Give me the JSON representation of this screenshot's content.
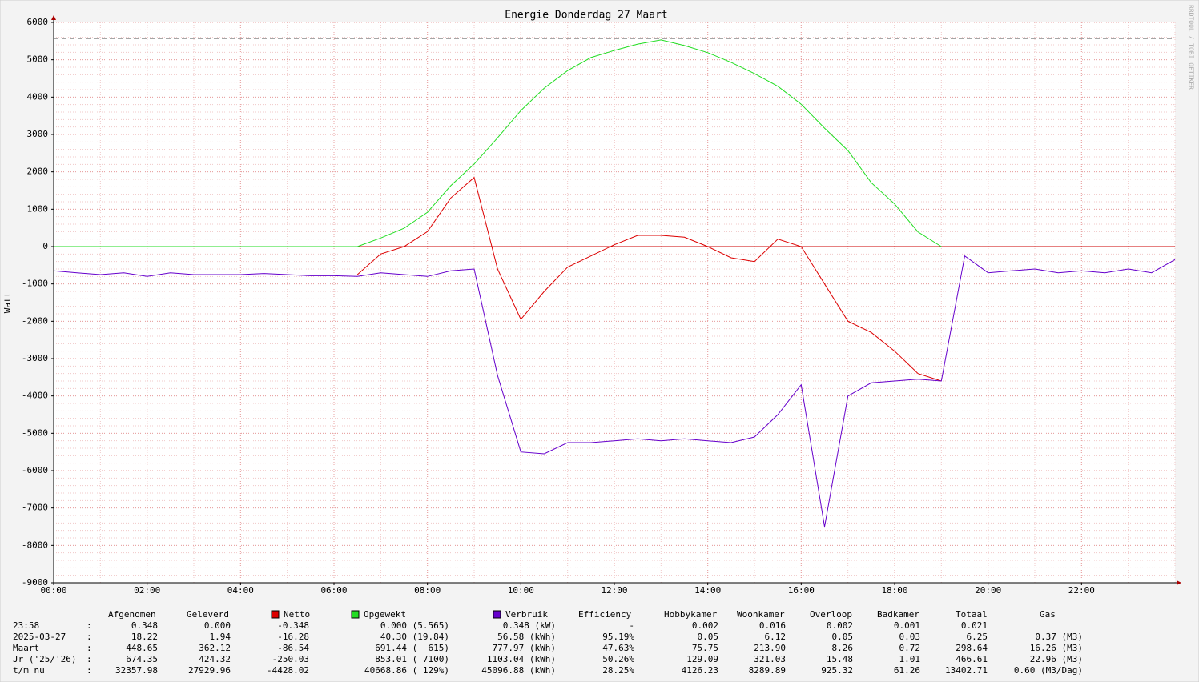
{
  "chart_data": {
    "type": "line",
    "title": "Energie Donderdag 27 Maart",
    "y_label": "Watt",
    "watermark": "RRDTOOL / TOBI OETIKER",
    "x": [
      0,
      0.5,
      1,
      1.5,
      2,
      2.5,
      3,
      3.5,
      4,
      4.5,
      5,
      5.5,
      6,
      6.5,
      7,
      7.5,
      8,
      8.5,
      9,
      9.5,
      10,
      10.5,
      11,
      11.5,
      12,
      12.5,
      13,
      13.5,
      14,
      14.5,
      15,
      15.5,
      16,
      16.5,
      17,
      17.5,
      18,
      18.5,
      19,
      19.5,
      20,
      20.5,
      21,
      21.5,
      22,
      22.5,
      23,
      23.5,
      24
    ],
    "xlim": [
      0,
      24
    ],
    "xticks": [
      {
        "value": 0,
        "label": "00:00"
      },
      {
        "value": 2,
        "label": "02:00"
      },
      {
        "value": 4,
        "label": "04:00"
      },
      {
        "value": 6,
        "label": "06:00"
      },
      {
        "value": 8,
        "label": "08:00"
      },
      {
        "value": 10,
        "label": "10:00"
      },
      {
        "value": 12,
        "label": "12:00"
      },
      {
        "value": 14,
        "label": "14:00"
      },
      {
        "value": 16,
        "label": "16:00"
      },
      {
        "value": 18,
        "label": "18:00"
      },
      {
        "value": 20,
        "label": "20:00"
      },
      {
        "value": 22,
        "label": "22:00"
      }
    ],
    "ylim": [
      -9000,
      6000
    ],
    "yticks": [
      -9000,
      -8000,
      -7000,
      -6000,
      -5000,
      -4000,
      -3000,
      -2000,
      -1000,
      0,
      1000,
      2000,
      3000,
      4000,
      5000,
      6000
    ],
    "grid": true,
    "minor_grid": {
      "x": 1,
      "y": 200
    },
    "reference_line": {
      "value": 5565,
      "color": "#888888"
    },
    "zero_line_color": "#cc0000",
    "series": [
      {
        "name": "Netto",
        "color": "#dd0000",
        "values": [
          null,
          null,
          null,
          null,
          null,
          null,
          null,
          null,
          null,
          null,
          null,
          null,
          null,
          -750,
          -200,
          0,
          400,
          1300,
          1850,
          -600,
          -1950,
          -1200,
          -550,
          -250,
          50,
          300,
          300,
          250,
          0,
          -300,
          -400,
          200,
          0,
          -1000,
          -2000,
          -2300,
          -2800,
          -3400,
          -3600,
          null,
          null,
          null,
          null,
          null,
          null,
          null,
          null,
          null,
          null
        ]
      },
      {
        "name": "Opgewekt",
        "color": "#22dd22",
        "values": [
          0,
          0,
          0,
          0,
          0,
          0,
          0,
          0,
          0,
          0,
          0,
          0,
          0,
          0,
          230,
          490,
          920,
          1630,
          2210,
          2910,
          3640,
          4240,
          4710,
          5060,
          5250,
          5420,
          5530,
          5380,
          5190,
          4930,
          4630,
          4290,
          3810,
          3170,
          2570,
          1710,
          1140,
          390,
          0,
          null,
          null,
          null,
          null,
          null,
          null,
          null,
          null,
          null,
          null
        ]
      },
      {
        "name": "Verbruik",
        "color": "#6600cc",
        "values": [
          -650,
          -700,
          -750,
          -700,
          -800,
          -700,
          -750,
          -750,
          -750,
          -720,
          -750,
          -780,
          -780,
          -800,
          -700,
          -750,
          -800,
          -650,
          -600,
          -3450,
          -5500,
          -5550,
          -5250,
          -5250,
          -5200,
          -5150,
          -5200,
          -5150,
          -5200,
          -5250,
          -5100,
          -4500,
          -3700,
          -7500,
          -4000,
          -3650,
          -3600,
          -3550,
          -3600,
          -250,
          -700,
          -650,
          -600,
          -700,
          -650,
          -700,
          -600,
          -700,
          -350
        ]
      }
    ]
  },
  "table": {
    "headers": [
      "Afgenomen",
      "Geleverd",
      "Efficiency",
      "Hobbykamer",
      "Woonkamer",
      "Overloop",
      "Badkamer",
      "Totaal",
      "Gas"
    ],
    "rows": [
      {
        "label": "23:58",
        "sep": ":",
        "cells": [
          "0.348",
          "0.000",
          "-0.348",
          "0.000 (5.565)",
          "0.348 (kW)",
          "-",
          "0.002",
          "0.016",
          "0.002",
          "0.001",
          "0.021"
        ]
      },
      {
        "label": "2025-03-27",
        "sep": ":",
        "cells": [
          "18.22",
          "1.94",
          "-16.28",
          "40.30 (19.84)",
          "56.58 (kWh)",
          "95.19%",
          "0.05",
          "6.12",
          "0.05",
          "0.03",
          "6.25",
          "0.37 (M3)"
        ]
      },
      {
        "label": "Maart",
        "sep": ":",
        "cells": [
          "448.65",
          "362.12",
          "-86.54",
          "691.44 (  615)",
          "777.97 (kWh)",
          "47.63%",
          "75.75",
          "213.90",
          "8.26",
          "0.72",
          "298.64",
          "16.26 (M3)"
        ]
      },
      {
        "label": "Jr ('25/'26)",
        "sep": ":",
        "cells": [
          "674.35",
          "424.32",
          "-250.03",
          "853.01 ( 7100)",
          "1103.04 (kWh)",
          "50.26%",
          "129.09",
          "321.03",
          "15.48",
          "1.01",
          "466.61",
          "22.96 (M3)"
        ]
      },
      {
        "label": "t/m nu",
        "sep": ":",
        "cells": [
          "32357.98",
          "27929.96",
          "-4428.02",
          "40668.86 ( 129%)",
          "45096.88 (kWh)",
          "28.25%",
          "4126.23",
          "8289.89",
          "925.32",
          "61.26",
          "13402.71",
          "0.60 (M3/Dag)"
        ]
      }
    ]
  }
}
